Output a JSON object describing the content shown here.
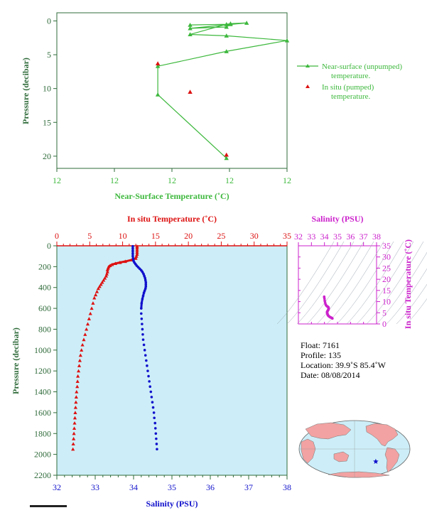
{
  "colors": {
    "green": "#3db83d",
    "dark_green": "#2f6b3a",
    "red": "#dd1111",
    "blue": "#1111cc",
    "magenta": "#cc22cc",
    "plot_bg": "#cdeef8",
    "ts_contour": "#9aa4b0",
    "land": "#f2a2a2",
    "ocean": "#cdeef8"
  },
  "chart_data": [
    {
      "type": "line",
      "id": "near_surface_panel",
      "xlabel": "Near-Surface Temperature (˚C)",
      "ylabel": "Pressure (decibar)",
      "x_tick_labels": [
        "12",
        "12",
        "12",
        "12",
        "12"
      ],
      "y_ticks": [
        0,
        5,
        10,
        15,
        20
      ],
      "ylim": [
        21.8,
        -1.2
      ],
      "series": [
        {
          "name": "Near-surface (unpumped) temperature.",
          "marker": "triangle",
          "color": "#3db83d",
          "points": [
            {
              "x": 11.93,
              "y": 0.6
            },
            {
              "x": 12.03,
              "y": 0.5
            },
            {
              "x": 12.02,
              "y": 0.9
            },
            {
              "x": 11.93,
              "y": 1.1
            },
            {
              "x": 12.07,
              "y": 0.3
            },
            {
              "x": 12.03,
              "y": 0.4
            },
            {
              "x": 12.02,
              "y": 0.5
            },
            {
              "x": 11.93,
              "y": 2.0
            },
            {
              "x": 12.02,
              "y": 2.2
            },
            {
              "x": 12.17,
              "y": 2.9
            },
            {
              "x": 12.02,
              "y": 4.5
            },
            {
              "x": 11.85,
              "y": 6.7
            },
            {
              "x": 11.85,
              "y": 10.9
            },
            {
              "x": 12.02,
              "y": 20.3
            }
          ]
        },
        {
          "name": "In situ (pumped) temperature.",
          "marker": "triangle",
          "color": "#dd1111",
          "points": [
            {
              "x": 11.85,
              "y": 6.3
            },
            {
              "x": 11.93,
              "y": 10.5
            },
            {
              "x": 12.02,
              "y": 19.8
            }
          ]
        }
      ]
    },
    {
      "type": "scatter",
      "id": "profile_panel",
      "ylabel": "Pressure (decibar)",
      "y_ticks": [
        0,
        200,
        400,
        600,
        800,
        1000,
        1200,
        1400,
        1600,
        1800,
        2000,
        2200
      ],
      "ylim": [
        2200,
        0
      ],
      "x_top": {
        "label": "In situ Temperature (˚C)",
        "ticks": [
          0,
          5,
          10,
          15,
          20,
          25,
          30,
          35
        ],
        "lim": [
          0,
          35
        ]
      },
      "x_bottom": {
        "label": "Salinity (PSU)",
        "ticks": [
          32,
          33,
          34,
          35,
          36,
          37,
          38
        ],
        "lim": [
          32,
          38
        ]
      },
      "series": [
        {
          "name": "In situ Temperature",
          "color": "#dd1111",
          "marker": "triangle",
          "points": [
            {
              "p": 5,
              "v": 12.2
            },
            {
              "p": 20,
              "v": 12.2
            },
            {
              "p": 40,
              "v": 12.2
            },
            {
              "p": 60,
              "v": 12.2
            },
            {
              "p": 80,
              "v": 12.2
            },
            {
              "p": 100,
              "v": 12.1
            },
            {
              "p": 120,
              "v": 12.0
            },
            {
              "p": 135,
              "v": 11.4
            },
            {
              "p": 150,
              "v": 10.4
            },
            {
              "p": 160,
              "v": 9.6
            },
            {
              "p": 170,
              "v": 8.9
            },
            {
              "p": 180,
              "v": 8.4
            },
            {
              "p": 190,
              "v": 8.1
            },
            {
              "p": 200,
              "v": 7.9
            },
            {
              "p": 215,
              "v": 7.8
            },
            {
              "p": 230,
              "v": 7.7
            },
            {
              "p": 250,
              "v": 7.7
            },
            {
              "p": 270,
              "v": 7.6
            },
            {
              "p": 290,
              "v": 7.5
            },
            {
              "p": 310,
              "v": 7.3
            },
            {
              "p": 330,
              "v": 7.1
            },
            {
              "p": 350,
              "v": 6.9
            },
            {
              "p": 370,
              "v": 6.7
            },
            {
              "p": 390,
              "v": 6.5
            },
            {
              "p": 410,
              "v": 6.3
            },
            {
              "p": 440,
              "v": 6.1
            },
            {
              "p": 470,
              "v": 5.9
            },
            {
              "p": 500,
              "v": 5.7
            },
            {
              "p": 550,
              "v": 5.5
            },
            {
              "p": 600,
              "v": 5.3
            },
            {
              "p": 650,
              "v": 5.1
            },
            {
              "p": 700,
              "v": 4.9
            },
            {
              "p": 750,
              "v": 4.7
            },
            {
              "p": 800,
              "v": 4.5
            },
            {
              "p": 850,
              "v": 4.3
            },
            {
              "p": 900,
              "v": 4.1
            },
            {
              "p": 950,
              "v": 3.9
            },
            {
              "p": 1000,
              "v": 3.75
            },
            {
              "p": 1050,
              "v": 3.6
            },
            {
              "p": 1100,
              "v": 3.5
            },
            {
              "p": 1150,
              "v": 3.4
            },
            {
              "p": 1200,
              "v": 3.3
            },
            {
              "p": 1250,
              "v": 3.2
            },
            {
              "p": 1300,
              "v": 3.15
            },
            {
              "p": 1350,
              "v": 3.1
            },
            {
              "p": 1400,
              "v": 3.0
            },
            {
              "p": 1450,
              "v": 2.95
            },
            {
              "p": 1500,
              "v": 2.9
            },
            {
              "p": 1550,
              "v": 2.85
            },
            {
              "p": 1600,
              "v": 2.8
            },
            {
              "p": 1650,
              "v": 2.75
            },
            {
              "p": 1700,
              "v": 2.7
            },
            {
              "p": 1750,
              "v": 2.65
            },
            {
              "p": 1800,
              "v": 2.6
            },
            {
              "p": 1850,
              "v": 2.55
            },
            {
              "p": 1900,
              "v": 2.5
            },
            {
              "p": 1950,
              "v": 2.45
            }
          ]
        },
        {
          "name": "Salinity",
          "color": "#1111cc",
          "marker": "dot",
          "points": [
            {
              "p": 5,
              "v": 33.98
            },
            {
              "p": 25,
              "v": 33.98
            },
            {
              "p": 50,
              "v": 33.98
            },
            {
              "p": 75,
              "v": 33.98
            },
            {
              "p": 100,
              "v": 33.98
            },
            {
              "p": 125,
              "v": 33.99
            },
            {
              "p": 145,
              "v": 34.0
            },
            {
              "p": 160,
              "v": 34.02
            },
            {
              "p": 175,
              "v": 34.05
            },
            {
              "p": 190,
              "v": 34.08
            },
            {
              "p": 205,
              "v": 34.12
            },
            {
              "p": 220,
              "v": 34.16
            },
            {
              "p": 235,
              "v": 34.2
            },
            {
              "p": 250,
              "v": 34.23
            },
            {
              "p": 270,
              "v": 34.26
            },
            {
              "p": 290,
              "v": 34.28
            },
            {
              "p": 310,
              "v": 34.3
            },
            {
              "p": 330,
              "v": 34.31
            },
            {
              "p": 350,
              "v": 34.32
            },
            {
              "p": 370,
              "v": 34.32
            },
            {
              "p": 390,
              "v": 34.32
            },
            {
              "p": 410,
              "v": 34.31
            },
            {
              "p": 430,
              "v": 34.29
            },
            {
              "p": 450,
              "v": 34.27
            },
            {
              "p": 480,
              "v": 34.25
            },
            {
              "p": 510,
              "v": 34.23
            },
            {
              "p": 550,
              "v": 34.21
            },
            {
              "p": 600,
              "v": 34.2
            },
            {
              "p": 650,
              "v": 34.2
            },
            {
              "p": 700,
              "v": 34.21
            },
            {
              "p": 750,
              "v": 34.22
            },
            {
              "p": 800,
              "v": 34.23
            },
            {
              "p": 850,
              "v": 34.24
            },
            {
              "p": 900,
              "v": 34.25
            },
            {
              "p": 950,
              "v": 34.27
            },
            {
              "p": 1000,
              "v": 34.29
            },
            {
              "p": 1050,
              "v": 34.31
            },
            {
              "p": 1100,
              "v": 34.33
            },
            {
              "p": 1150,
              "v": 34.35
            },
            {
              "p": 1200,
              "v": 34.37
            },
            {
              "p": 1250,
              "v": 34.39
            },
            {
              "p": 1300,
              "v": 34.41
            },
            {
              "p": 1350,
              "v": 34.43
            },
            {
              "p": 1400,
              "v": 34.45
            },
            {
              "p": 1450,
              "v": 34.47
            },
            {
              "p": 1500,
              "v": 34.49
            },
            {
              "p": 1550,
              "v": 34.51
            },
            {
              "p": 1600,
              "v": 34.53
            },
            {
              "p": 1650,
              "v": 34.54
            },
            {
              "p": 1700,
              "v": 34.56
            },
            {
              "p": 1750,
              "v": 34.57
            },
            {
              "p": 1800,
              "v": 34.58
            },
            {
              "p": 1850,
              "v": 34.59
            },
            {
              "p": 1900,
              "v": 34.6
            },
            {
              "p": 1950,
              "v": 34.61
            }
          ]
        }
      ]
    },
    {
      "type": "scatter",
      "id": "ts_panel",
      "title": "Salinity (PSU)",
      "ylabel": "In situ Temperature (˚C)",
      "x_ticks": [
        32,
        33,
        34,
        35,
        36,
        37,
        38
      ],
      "xlim": [
        32,
        38
      ],
      "y_ticks": [
        0,
        5,
        10,
        15,
        20,
        25,
        30,
        35
      ],
      "ylim": [
        0,
        35
      ],
      "color": "#cc22cc",
      "points": [
        {
          "s": 33.98,
          "t": 12.2
        },
        {
          "s": 33.98,
          "t": 12.0
        },
        {
          "s": 34.0,
          "t": 11.4
        },
        {
          "s": 34.02,
          "t": 10.4
        },
        {
          "s": 34.05,
          "t": 9.6
        },
        {
          "s": 34.08,
          "t": 8.9
        },
        {
          "s": 34.12,
          "t": 8.4
        },
        {
          "s": 34.16,
          "t": 8.1
        },
        {
          "s": 34.2,
          "t": 7.9
        },
        {
          "s": 34.23,
          "t": 7.8
        },
        {
          "s": 34.26,
          "t": 7.7
        },
        {
          "s": 34.28,
          "t": 7.6
        },
        {
          "s": 34.3,
          "t": 7.5
        },
        {
          "s": 34.31,
          "t": 7.3
        },
        {
          "s": 34.32,
          "t": 7.1
        },
        {
          "s": 34.32,
          "t": 6.9
        },
        {
          "s": 34.32,
          "t": 6.7
        },
        {
          "s": 34.31,
          "t": 6.5
        },
        {
          "s": 34.29,
          "t": 6.3
        },
        {
          "s": 34.27,
          "t": 6.1
        },
        {
          "s": 34.25,
          "t": 5.9
        },
        {
          "s": 34.23,
          "t": 5.7
        },
        {
          "s": 34.21,
          "t": 5.5
        },
        {
          "s": 34.2,
          "t": 5.3
        },
        {
          "s": 34.2,
          "t": 5.1
        },
        {
          "s": 34.21,
          "t": 4.9
        },
        {
          "s": 34.22,
          "t": 4.7
        },
        {
          "s": 34.23,
          "t": 4.5
        },
        {
          "s": 34.24,
          "t": 4.3
        },
        {
          "s": 34.25,
          "t": 4.1
        },
        {
          "s": 34.27,
          "t": 3.9
        },
        {
          "s": 34.29,
          "t": 3.75
        },
        {
          "s": 34.31,
          "t": 3.6
        },
        {
          "s": 34.33,
          "t": 3.5
        },
        {
          "s": 34.37,
          "t": 3.3
        },
        {
          "s": 34.41,
          "t": 3.15
        },
        {
          "s": 34.45,
          "t": 3.0
        },
        {
          "s": 34.49,
          "t": 2.9
        },
        {
          "s": 34.53,
          "t": 2.8
        },
        {
          "s": 34.56,
          "t": 2.7
        },
        {
          "s": 34.58,
          "t": 2.6
        },
        {
          "s": 34.6,
          "t": 2.5
        },
        {
          "s": 34.61,
          "t": 2.45
        }
      ]
    }
  ],
  "info": {
    "float": "Float:  7161",
    "profile": "Profile:  135",
    "location": "Location:  39.9˚S  85.4˚W",
    "date": "Date:  08/08/2014"
  },
  "map": {
    "float_lat": -39.9,
    "float_lon": -85.4,
    "marker": "blue star"
  }
}
